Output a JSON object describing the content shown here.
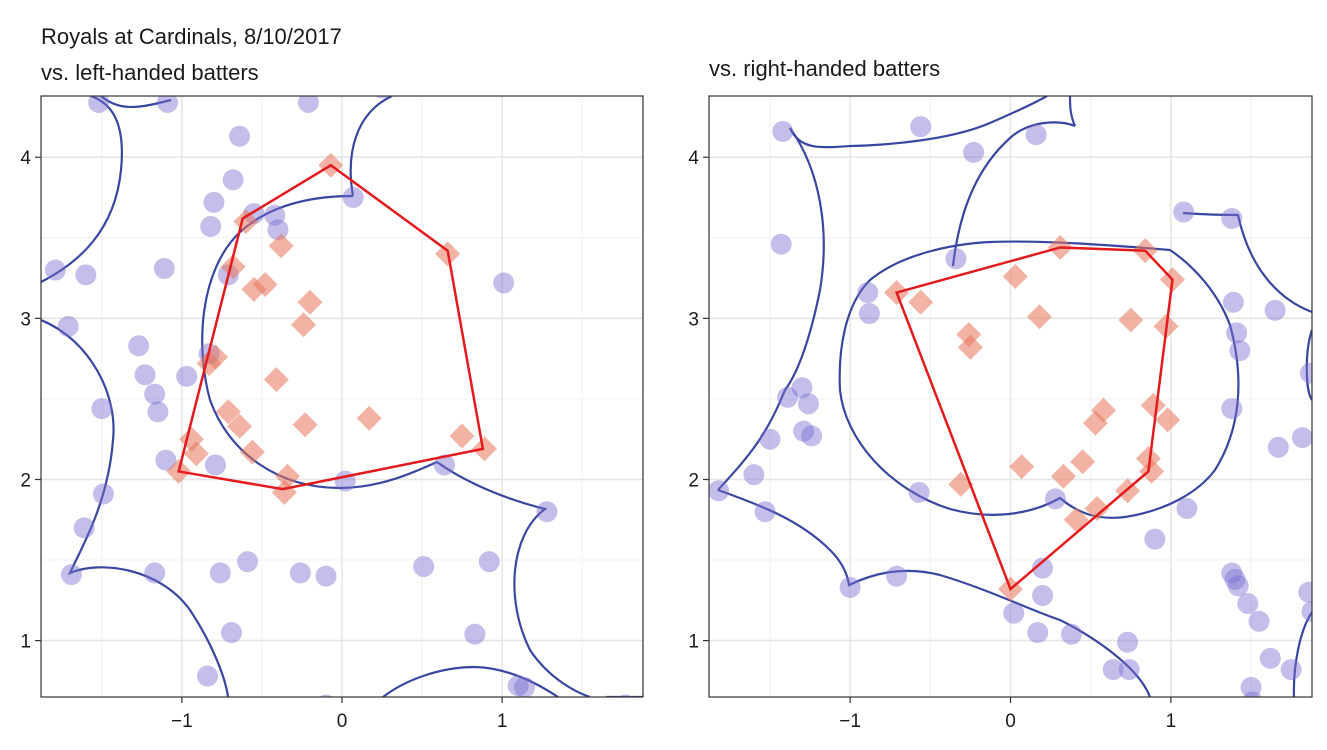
{
  "chart_data": [
    {
      "type": "scatter",
      "title": "Royals at Cardinals, 8/10/2017",
      "subtitle": "vs. left-handed batters",
      "xlabel": "",
      "ylabel": "",
      "xlim": [
        -1.88,
        1.88
      ],
      "ylim": [
        0.65,
        4.38
      ],
      "xticks": [
        -1,
        0,
        1
      ],
      "xtick_labels": [
        "−1",
        "0",
        "1"
      ],
      "yticks": [
        1,
        2,
        3,
        4
      ],
      "ytick_labels": [
        "1",
        "2",
        "3",
        "4"
      ],
      "grid": true,
      "legend": "none",
      "colors": {
        "circles": "#7b6fd0",
        "diamonds": "#e8755a",
        "hull": "#e41a1c",
        "boundary": "#3a47a0"
      },
      "series": [
        {
          "marker": "circle",
          "x": [
            -1.52,
            -1.09,
            -0.21,
            0.25,
            -1.79,
            -1.6,
            -1.71,
            -1.27,
            -1.23,
            -1.17,
            -1.15,
            -1.11,
            -0.97,
            -1.5,
            -1.49,
            -1.61,
            -1.69,
            -1.1,
            -0.64,
            -0.8,
            -0.68,
            -0.71,
            -0.55,
            -0.82,
            -0.83,
            -0.79,
            -0.42,
            -0.4,
            0.07,
            -0.76,
            0.02,
            0.64,
            1.01,
            -1.17,
            -0.59,
            -0.26,
            -0.1,
            0.51,
            0.92,
            0.83,
            1.28,
            1.1,
            1.14,
            -0.84,
            -0.69,
            -0.1,
            1.77
          ],
          "y": [
            4.34,
            4.34,
            4.34,
            4.43,
            3.3,
            3.27,
            2.95,
            2.83,
            2.65,
            2.53,
            2.42,
            3.31,
            2.64,
            2.44,
            1.91,
            1.7,
            1.41,
            2.12,
            4.13,
            3.72,
            3.86,
            3.27,
            3.65,
            3.57,
            2.78,
            2.09,
            3.64,
            3.55,
            3.75,
            1.42,
            1.99,
            2.09,
            3.22,
            1.42,
            1.49,
            1.42,
            1.4,
            1.46,
            1.49,
            1.04,
            1.8,
            0.72,
            0.71,
            0.78,
            1.05,
            0.6,
            0.6
          ]
        },
        {
          "marker": "diamond",
          "x": [
            -0.07,
            0.66,
            -0.6,
            -0.68,
            -0.55,
            -0.48,
            -0.38,
            -0.2,
            -0.24,
            -0.41,
            -0.83,
            -0.79,
            -0.71,
            -0.64,
            -0.56,
            -0.94,
            -0.91,
            -1.02,
            -0.34,
            -0.36,
            -0.23,
            0.17,
            0.75,
            0.89
          ],
          "y": [
            3.95,
            3.4,
            3.6,
            3.32,
            3.18,
            3.21,
            3.45,
            3.1,
            2.96,
            2.62,
            2.72,
            2.76,
            2.42,
            2.33,
            2.17,
            2.25,
            2.16,
            2.05,
            2.02,
            1.92,
            2.34,
            2.38,
            2.27,
            2.19
          ]
        }
      ],
      "hull": {
        "x": [
          -0.07,
          0.66,
          0.88,
          -0.37,
          -1.02,
          -0.62
        ],
        "y": [
          3.95,
          3.42,
          2.19,
          1.94,
          2.05,
          3.62
        ]
      }
    },
    {
      "type": "scatter",
      "title": "vs. right-handed batters",
      "xlabel": "",
      "ylabel": "",
      "xlim": [
        -1.88,
        1.88
      ],
      "ylim": [
        0.65,
        4.38
      ],
      "xticks": [
        -1,
        0,
        1
      ],
      "xtick_labels": [
        "−1",
        "0",
        "1"
      ],
      "yticks": [
        1,
        2,
        3,
        4
      ],
      "ytick_labels": [
        "1",
        "2",
        "3",
        "4"
      ],
      "grid": true,
      "legend": "none",
      "colors": {
        "circles": "#7b6fd0",
        "diamonds": "#e8755a",
        "hull": "#e41a1c",
        "boundary": "#3a47a0"
      },
      "series": [
        {
          "marker": "circle",
          "x": [
            -1.42,
            -0.56,
            0.16,
            -0.23,
            -1.43,
            -0.34,
            -0.89,
            -0.88,
            -1.39,
            -1.3,
            -1.26,
            -1.29,
            -1.24,
            -1.5,
            -1.6,
            -1.82,
            -1.53,
            -0.57,
            -1.0,
            -0.71,
            0.28,
            0.2,
            0.2,
            0.02,
            0.17,
            0.38,
            0.64,
            0.73,
            0.74,
            0.9,
            1.1,
            1.08,
            1.38,
            1.39,
            1.41,
            1.43,
            1.38,
            1.38,
            1.4,
            1.42,
            1.48,
            1.55,
            1.62,
            1.67,
            1.75,
            1.82,
            1.86,
            1.88,
            1.5,
            1.51,
            1.65,
            1.87
          ],
          "y": [
            4.16,
            4.19,
            4.14,
            4.03,
            3.46,
            3.37,
            3.16,
            3.03,
            2.51,
            2.57,
            2.47,
            2.3,
            2.27,
            2.25,
            2.03,
            1.93,
            1.8,
            1.92,
            1.33,
            1.4,
            1.88,
            1.45,
            1.28,
            1.17,
            1.05,
            1.04,
            0.82,
            0.99,
            0.82,
            1.63,
            1.82,
            3.66,
            3.62,
            3.1,
            2.91,
            2.8,
            2.44,
            1.42,
            1.38,
            1.34,
            1.23,
            1.12,
            0.89,
            2.2,
            0.82,
            2.26,
            1.3,
            1.18,
            0.71,
            0.62,
            3.05,
            2.66
          ]
        },
        {
          "marker": "diamond",
          "x": [
            0.31,
            0.84,
            1.01,
            -0.71,
            -0.56,
            0.03,
            0.18,
            -0.26,
            -0.25,
            0.75,
            0.97,
            0.58,
            0.53,
            0.89,
            0.98,
            0.86,
            0.88,
            -0.31,
            0.07,
            0.33,
            0.45,
            0.41,
            0.54,
            0.73,
            0.0
          ],
          "y": [
            3.44,
            3.42,
            3.24,
            3.16,
            3.1,
            3.26,
            3.01,
            2.9,
            2.82,
            2.99,
            2.95,
            2.43,
            2.35,
            2.46,
            2.37,
            2.13,
            2.05,
            1.97,
            2.08,
            2.02,
            2.11,
            1.75,
            1.82,
            1.93,
            1.32
          ]
        }
      ],
      "hull": {
        "x": [
          0.31,
          0.84,
          1.01,
          0.86,
          0.0,
          -0.71
        ],
        "y": [
          3.44,
          3.42,
          3.24,
          2.05,
          1.32,
          3.16
        ]
      }
    }
  ]
}
